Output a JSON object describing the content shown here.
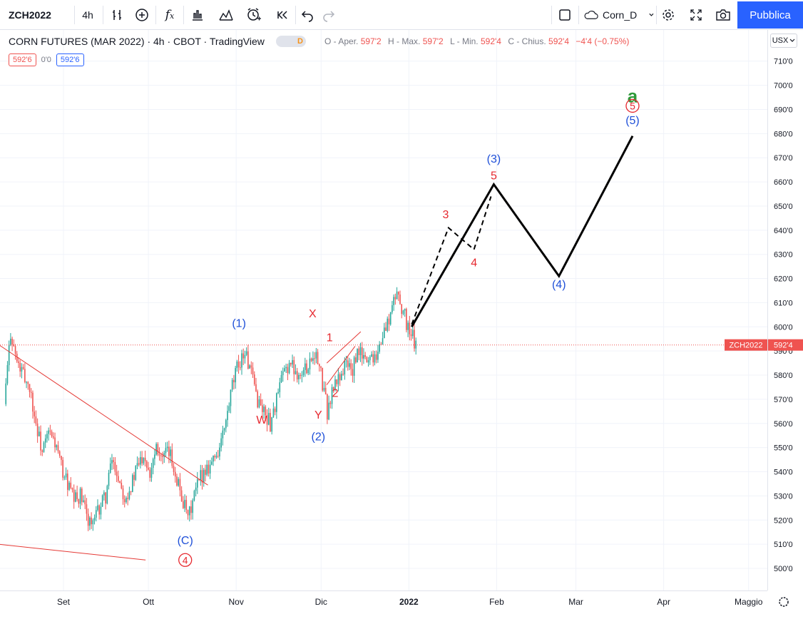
{
  "toolbar": {
    "symbol": "ZCH2022",
    "interval": "4h",
    "layout_name": "Corn_D",
    "publish_label": "Pubblica",
    "icons": [
      "bars-compare-icon",
      "add-indicator-icon",
      "fx-indicators-icon",
      "chart-type-icon",
      "templates-icon",
      "alert-icon",
      "replay-icon",
      "undo-icon",
      "redo-icon",
      "square-icon",
      "cloud-icon",
      "settings-icon",
      "fullscreen-icon",
      "camera-icon"
    ]
  },
  "legend": {
    "title": "CORN FUTURES (MAR 2022) · 4h · CBOT · TradingView",
    "badge": "D",
    "open_label": "O - Aper.",
    "open_value": "597'2",
    "high_label": "H - Max.",
    "high_value": "597'2",
    "low_label": "L - Min.",
    "low_value": "592'4",
    "close_label": "C - Chius.",
    "close_value": "592'4",
    "change": "−4'4 (−0.75%)",
    "bid": "592'6",
    "spread": "0'0",
    "ask": "592'6"
  },
  "price_axis": {
    "currency": "USX"
  },
  "colors": {
    "up": "#26a69a",
    "down": "#ef5350",
    "wave_blue": "#1e4fd8",
    "wave_red": "#e6282f",
    "wave_green": "#2e9a3a",
    "accent": "#2962ff"
  },
  "chart_data": {
    "type": "candlestick",
    "title": "CORN FUTURES (MAR 2022)",
    "ylim": [
      495,
      716
    ],
    "yticks": [
      "500'0",
      "510'0",
      "520'0",
      "530'0",
      "540'0",
      "550'0",
      "560'0",
      "570'0",
      "580'0",
      "590'0",
      "600'0",
      "610'0",
      "620'0",
      "630'0",
      "640'0",
      "650'0",
      "660'0",
      "670'0",
      "680'0",
      "690'0",
      "700'0",
      "710'0"
    ],
    "xticks": [
      "Set",
      "Ott",
      "Nov",
      "Dic",
      "2022",
      "Feb",
      "Mar",
      "Apr",
      "Maggio"
    ],
    "last_price": {
      "symbol": "ZCH2022",
      "value": 592.5,
      "label": "592'4"
    },
    "price_path": [
      [
        0,
        568
      ],
      [
        4,
        598
      ],
      [
        8,
        585
      ],
      [
        12,
        580
      ],
      [
        16,
        575
      ],
      [
        20,
        560
      ],
      [
        24,
        548
      ],
      [
        28,
        556
      ],
      [
        32,
        552
      ],
      [
        36,
        542
      ],
      [
        40,
        535
      ],
      [
        44,
        528
      ],
      [
        48,
        530
      ],
      [
        52,
        522
      ],
      [
        56,
        518
      ],
      [
        60,
        525
      ],
      [
        64,
        530
      ],
      [
        68,
        545
      ],
      [
        72,
        538
      ],
      [
        76,
        530
      ],
      [
        80,
        534
      ],
      [
        84,
        542
      ],
      [
        88,
        548
      ],
      [
        92,
        540
      ],
      [
        96,
        552
      ],
      [
        100,
        545
      ],
      [
        104,
        548
      ],
      [
        108,
        540
      ],
      [
        112,
        530
      ],
      [
        116,
        520
      ],
      [
        120,
        530
      ],
      [
        124,
        538
      ],
      [
        128,
        542
      ],
      [
        132,
        545
      ],
      [
        136,
        550
      ],
      [
        140,
        560
      ],
      [
        144,
        575
      ],
      [
        148,
        585
      ],
      [
        152,
        590
      ],
      [
        156,
        580
      ],
      [
        160,
        570
      ],
      [
        164,
        565
      ],
      [
        168,
        560
      ],
      [
        172,
        570
      ],
      [
        176,
        580
      ],
      [
        180,
        585
      ],
      [
        184,
        582
      ],
      [
        188,
        580
      ],
      [
        192,
        585
      ],
      [
        196,
        590
      ],
      [
        200,
        580
      ],
      [
        204,
        565
      ],
      [
        208,
        575
      ],
      [
        212,
        580
      ],
      [
        216,
        585
      ],
      [
        220,
        582
      ],
      [
        224,
        590
      ],
      [
        228,
        586
      ],
      [
        232,
        588
      ],
      [
        236,
        590
      ],
      [
        240,
        598
      ],
      [
        244,
        605
      ],
      [
        248,
        615
      ],
      [
        252,
        606
      ],
      [
        256,
        598
      ],
      [
        260,
        592.5
      ]
    ],
    "trendlines": [
      {
        "from": [
          "2021-08-01",
          599
        ],
        "to": [
          "2021-10-22",
          534.5
        ]
      },
      {
        "from": [
          "2021-08-01",
          511
        ],
        "to": [
          "2021-09-30",
          503.5
        ]
      },
      {
        "from": [
          "2021-12-03",
          576
        ],
        "to": [
          "2021-12-13",
          592
        ]
      },
      {
        "from": [
          "2021-12-03",
          585
        ],
        "to": [
          "2021-12-15",
          598
        ]
      }
    ],
    "projection_solid": [
      [
        "2022-01-02",
        600
      ],
      [
        "2022-01-31",
        659
      ],
      [
        "2022-02-23",
        621
      ],
      [
        "2022-03-21",
        679
      ]
    ],
    "projection_dashed": [
      [
        "2022-01-02",
        601
      ],
      [
        "2022-01-15",
        641
      ],
      [
        "2022-01-24",
        632
      ],
      [
        "2022-01-30",
        654
      ]
    ],
    "wave_labels": [
      {
        "text": "(1)",
        "color": "blue",
        "date": "2021-11-02",
        "price": 600
      },
      {
        "text": "W",
        "color": "red",
        "date": "2021-11-10",
        "price": 560
      },
      {
        "text": "X",
        "color": "red",
        "date": "2021-11-28",
        "price": 604
      },
      {
        "text": "Y",
        "color": "red",
        "date": "2021-11-30",
        "price": 562
      },
      {
        "text": "(2)",
        "color": "blue",
        "date": "2021-11-30",
        "price": 553
      },
      {
        "text": "1",
        "color": "red",
        "date": "2021-12-04",
        "price": 594
      },
      {
        "text": "2",
        "color": "red",
        "date": "2021-12-06",
        "price": 571
      },
      {
        "text": "(C)",
        "color": "blue",
        "date": "2021-10-14",
        "price": 510
      },
      {
        "text": "4",
        "color": "red",
        "circled": true,
        "date": "2021-10-14",
        "price": 502
      },
      {
        "text": "3",
        "color": "red",
        "date": "2022-01-14",
        "price": 645
      },
      {
        "text": "4",
        "color": "red",
        "date": "2022-01-24",
        "price": 625
      },
      {
        "text": "(3)",
        "color": "blue",
        "date": "2022-01-31",
        "price": 668
      },
      {
        "text": "5",
        "color": "red",
        "date": "2022-01-31",
        "price": 661
      },
      {
        "text": "(4)",
        "color": "blue",
        "date": "2022-02-23",
        "price": 616
      },
      {
        "text": "a",
        "color": "green",
        "date": "2022-03-21",
        "price": 693
      },
      {
        "text": "5",
        "color": "red",
        "circled": true,
        "date": "2022-03-21",
        "price": 690
      },
      {
        "text": "(5)",
        "color": "blue",
        "date": "2022-03-21",
        "price": 684
      }
    ]
  }
}
